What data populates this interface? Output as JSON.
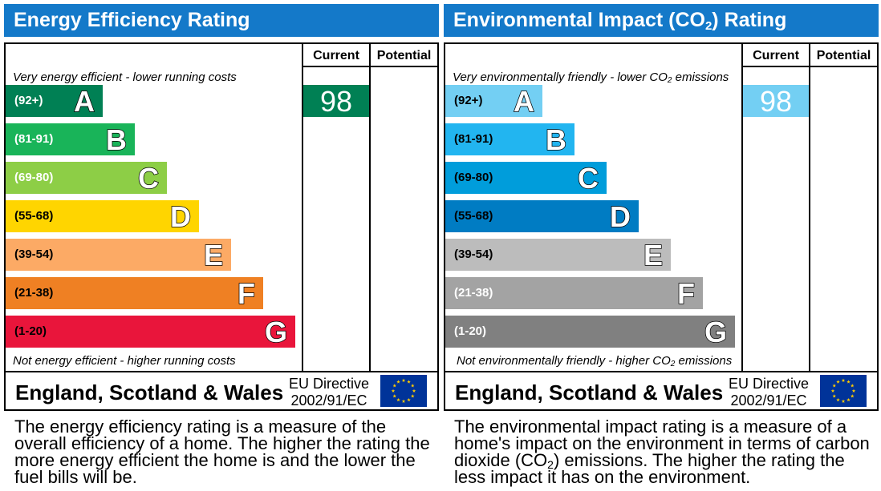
{
  "energy": {
    "title": "Energy Efficiency Rating",
    "col_current": "Current",
    "col_potential": "Potential",
    "top_note": "Very energy efficient - lower running costs",
    "bottom_note": "Not energy efficient - higher running costs",
    "region": "England, Scotland & Wales",
    "directive_line1": "EU Directive",
    "directive_line2": "2002/91/EC",
    "description": "The energy efficiency rating is a measure of the overall efficiency of a home. The higher the rating the more energy efficient the home is and the lower the fuel bills will be.",
    "current_value": "98",
    "current_color": "#008054"
  },
  "environment": {
    "title_pre": "Environmental Impact (CO",
    "title_sub": "2",
    "title_post": ") Rating",
    "col_current": "Current",
    "col_potential": "Potential",
    "top_note_pre": "Very environmentally friendly - lower CO",
    "top_note_sub": "2",
    "top_note_post": " emissions",
    "bottom_note_pre": "Not environmentally friendly - higher CO",
    "bottom_note_sub": "2",
    "bottom_note_post": " emissions",
    "region": "England, Scotland & Wales",
    "directive_line1": "EU Directive",
    "directive_line2": "2002/91/EC",
    "desc_pre": "The environmental impact rating is a measure of a home's impact on the environment in terms of carbon dioxide (CO",
    "desc_sub": "2",
    "desc_post": ") emissions. The higher the rating the less impact it has on the environment.",
    "current_value": "98",
    "current_color": "#73cff3"
  },
  "chart_data": [
    {
      "type": "bar",
      "title": "Energy Efficiency Rating",
      "categories": [
        "A",
        "B",
        "C",
        "D",
        "E",
        "F",
        "G"
      ],
      "ranges": [
        "(92+)",
        "(81-91)",
        "(69-80)",
        "(55-68)",
        "(39-54)",
        "(21-38)",
        "(1-20)"
      ],
      "colors": [
        "#008054",
        "#19b459",
        "#8dce46",
        "#ffd500",
        "#fcaa65",
        "#ef8023",
        "#e9153b"
      ],
      "range_text_colors": [
        "#ffffff",
        "#ffffff",
        "#ffffff",
        "#000000",
        "#000000",
        "#000000",
        "#000000"
      ],
      "current": 98,
      "current_band": "A",
      "potential": null
    },
    {
      "type": "bar",
      "title": "Environmental Impact (CO2) Rating",
      "categories": [
        "A",
        "B",
        "C",
        "D",
        "E",
        "F",
        "G"
      ],
      "ranges": [
        "(92+)",
        "(81-91)",
        "(69-80)",
        "(55-68)",
        "(39-54)",
        "(21-38)",
        "(1-20)"
      ],
      "colors": [
        "#73cff3",
        "#22b5f0",
        "#009ddb",
        "#007cc3",
        "#bcbcbc",
        "#a3a3a3",
        "#808080"
      ],
      "range_text_colors": [
        "#000000",
        "#000000",
        "#000000",
        "#000000",
        "#000000",
        "#ffffff",
        "#ffffff"
      ],
      "current": 98,
      "current_band": "A",
      "potential": null
    }
  ],
  "icons": {
    "eu_flag": "eu-flag-icon"
  }
}
